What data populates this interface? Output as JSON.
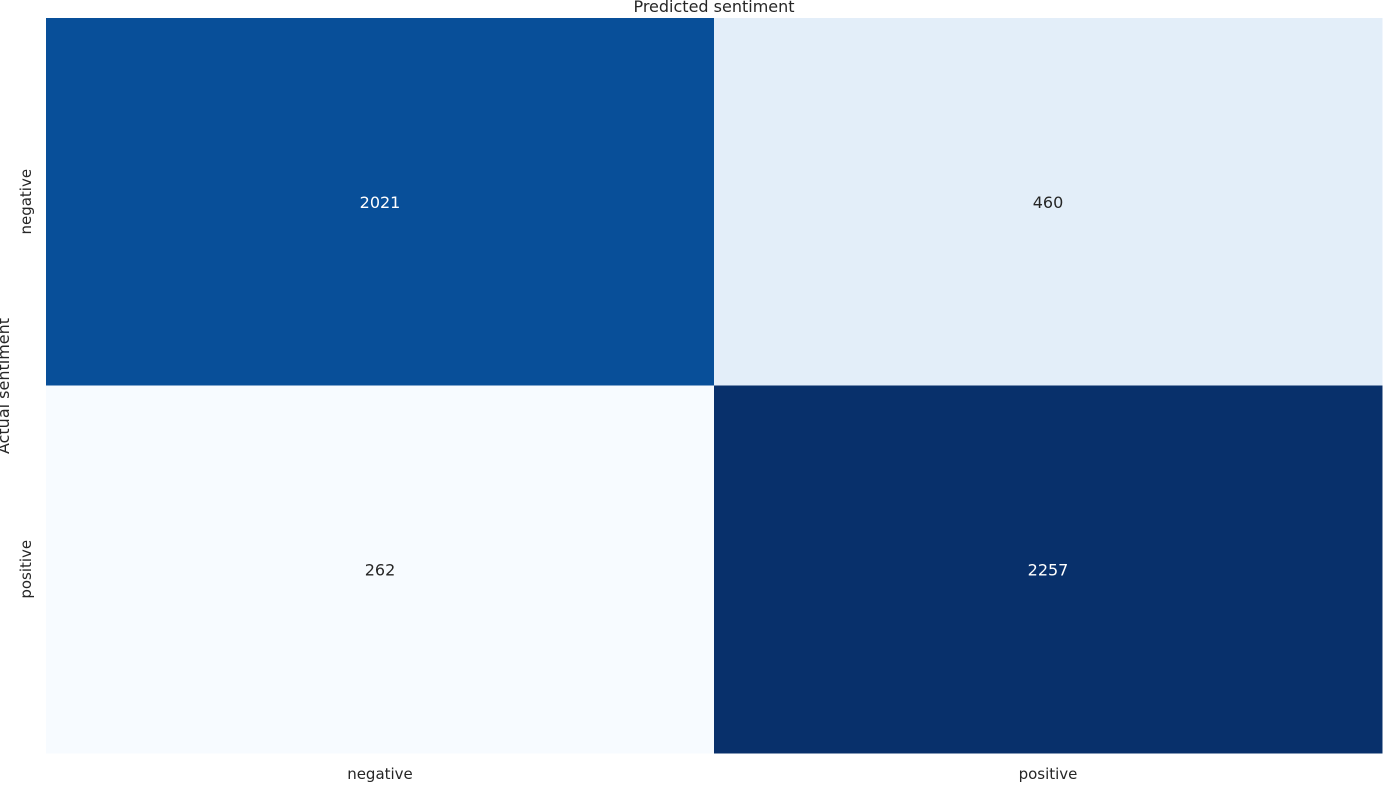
{
  "chart_data": {
    "type": "heatmap",
    "title": "Predicted sentiment",
    "xlabel": "",
    "ylabel": "Actual sentiment",
    "x_categories": [
      "negative",
      "positive"
    ],
    "y_categories": [
      "negative",
      "positive"
    ],
    "values": [
      [
        2021,
        460
      ],
      [
        262,
        2257
      ]
    ],
    "colormap": "Blues",
    "colorbar": false,
    "grid": false,
    "colors": {
      "low": "#f7fbff",
      "high": "#08306b",
      "text_dark": "#262626",
      "text_light": "#ffffff"
    }
  }
}
